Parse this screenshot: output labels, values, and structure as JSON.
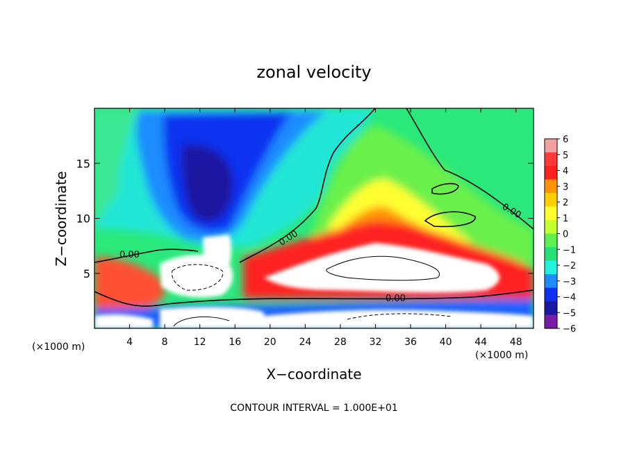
{
  "chart_data": {
    "type": "heatmap",
    "title": "zonal velocity",
    "xlabel": "X−coordinate",
    "ylabel": "Z−coordinate",
    "x_unit_left": "(×1000 m)",
    "x_unit_right": "(×1000 m)",
    "xlim": [
      0,
      50
    ],
    "ylim": [
      0,
      20
    ],
    "x_ticks": [
      4,
      8,
      12,
      16,
      20,
      24,
      28,
      32,
      36,
      40,
      44,
      48
    ],
    "y_ticks": [
      5,
      10,
      15
    ],
    "colorbar": {
      "ticks": [
        "6",
        "5",
        "4",
        "3",
        "2",
        "1",
        "0",
        "−1",
        "−2",
        "−3",
        "−4",
        "−5",
        "−6"
      ],
      "colors": [
        "#f2a0a0",
        "#ff3a3a",
        "#ff2020",
        "#ff9400",
        "#ffd000",
        "#ffff30",
        "#c6ff2e",
        "#5cf050",
        "#28e078",
        "#22f0e0",
        "#1e8cff",
        "#1030f0",
        "#1a18a0",
        "#7a1aa8"
      ]
    },
    "contour_labels": [
      "0.00",
      "0.00",
      "0.00",
      "0.00"
    ],
    "footer": "CONTOUR INTERVAL = 1.000E+01"
  },
  "colors": {
    "background": "#ffffff",
    "frame": "#000000"
  }
}
